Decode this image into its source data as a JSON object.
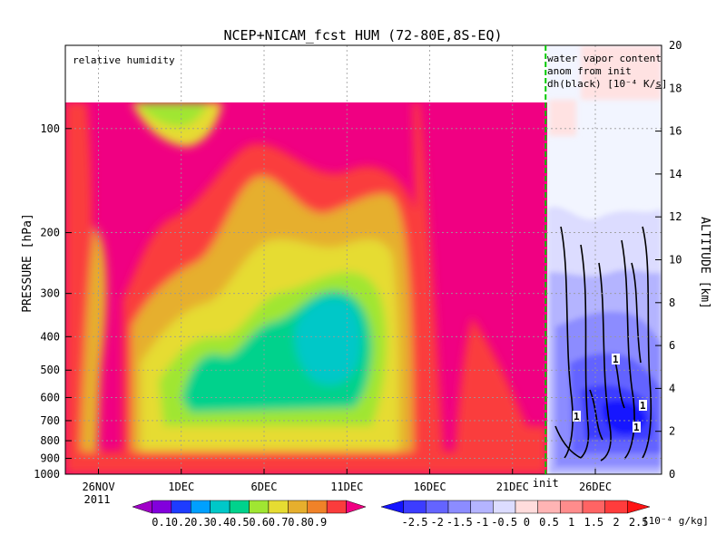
{
  "chart_data": {
    "type": "heatmap",
    "title": "NCEP+NICAM_fcst HUM (72-80E,8S-EQ)",
    "left_annotation": "relative humidity",
    "right_annotation": [
      "water vapor content",
      "anom from init",
      "dh(black) [10⁻⁴ K/s]"
    ],
    "ylabel_left": "PRESSURE [hPa]",
    "ylabel_right": "ALTITUDE [km]",
    "x_ticks": [
      {
        "day": 0,
        "label": "26NOV"
      },
      {
        "day": 5,
        "label": "1DEC"
      },
      {
        "day": 10,
        "label": "6DEC"
      },
      {
        "day": 15,
        "label": "11DEC"
      },
      {
        "day": 20,
        "label": "16DEC"
      },
      {
        "day": 25,
        "label": "21DEC"
      },
      {
        "day": 30,
        "label": "26DEC"
      }
    ],
    "x_sublabel": "2011",
    "xlim_day": [
      -2,
      34
    ],
    "init_day": 27.0,
    "init_label": "init",
    "pressure_ticks": [
      100,
      200,
      300,
      400,
      500,
      600,
      700,
      800,
      900,
      1000
    ],
    "altitude_ticks": [
      0,
      2,
      4,
      6,
      8,
      10,
      12,
      14,
      16,
      18,
      20
    ],
    "altitude_lim": [
      0,
      20
    ],
    "pressure_top": 100,
    "grid": true,
    "colorbar_rh": {
      "labels": [
        "0.1",
        "0.2",
        "0.3",
        "0.4",
        "0.5",
        "0.6",
        "0.7",
        "0.8",
        "0.9"
      ],
      "colors": [
        "#a000c8",
        "#8200dc",
        "#1e3cff",
        "#00a0ff",
        "#00c8c8",
        "#00d28c",
        "#a0e632",
        "#e6dc32",
        "#e6af2d",
        "#f08228",
        "#fa3c3c",
        "#f00082"
      ]
    },
    "colorbar_anom": {
      "labels": [
        "-2.5",
        "-2",
        "-1.5",
        "-1",
        "-0.5",
        "0",
        "0.5",
        "1",
        "1.5",
        "2",
        "2.5"
      ],
      "unit": "[10⁻⁴ g/kg]",
      "colors": [
        "#1414ff",
        "#3c3cff",
        "#6464ff",
        "#8c8cff",
        "#b4b4ff",
        "#dcdcff",
        "#ffdcdc",
        "#ffb4b4",
        "#ff8c8c",
        "#ff6464",
        "#ff3c3c",
        "#ff1414"
      ]
    },
    "contour_label": "1"
  }
}
